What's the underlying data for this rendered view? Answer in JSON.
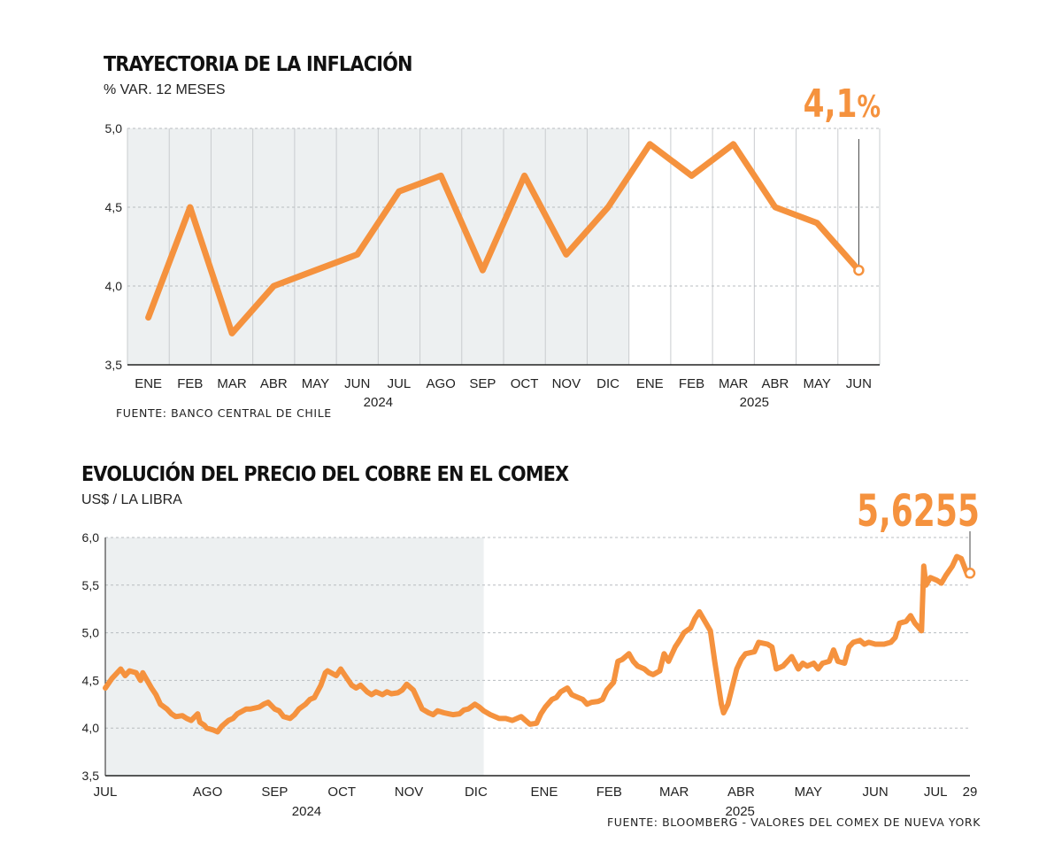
{
  "chart_data": [
    {
      "type": "line",
      "title": "TRAYECTORIA DE LA INFLACIÓN",
      "subtitle": "% VAR. 12 MESES",
      "source": "FUENTE: BANCO CENTRAL DE CHILE",
      "highlight_value": "4,1",
      "highlight_unit": "%",
      "ylim": [
        3.5,
        5.0
      ],
      "yticks": [
        "3,5",
        "4,0",
        "4,5",
        "5,0"
      ],
      "ytick_values": [
        3.5,
        4.0,
        4.5,
        5.0
      ],
      "grid": true,
      "categories": [
        "ENE",
        "FEB",
        "MAR",
        "ABR",
        "MAY",
        "JUN",
        "JUL",
        "AGO",
        "SEP",
        "OCT",
        "NOV",
        "DIC",
        "ENE",
        "FEB",
        "MAR",
        "ABR",
        "MAY",
        "JUN"
      ],
      "years": [
        {
          "label": "2024",
          "start": 0,
          "end": 11
        },
        {
          "label": "2025",
          "start": 12,
          "end": 17
        }
      ],
      "shaded_period": [
        0,
        11
      ],
      "values": [
        3.8,
        4.5,
        3.7,
        4.0,
        4.1,
        4.2,
        4.6,
        4.7,
        4.1,
        4.7,
        4.2,
        4.5,
        4.9,
        4.7,
        4.9,
        4.5,
        4.4,
        4.1
      ],
      "color": "#f5923e"
    },
    {
      "type": "line",
      "title": "EVOLUCIÓN DEL PRECIO DEL COBRE EN EL COMEX",
      "subtitle": "US$ / LA LIBRA",
      "source": "FUENTE: BLOOMBERG - VALORES DEL COMEX DE NUEVA YORK",
      "highlight_value": "5,6255",
      "ylim": [
        3.5,
        6.0
      ],
      "yticks": [
        "3,5",
        "4,0",
        "4,5",
        "5,0",
        "5,5",
        "6,0"
      ],
      "ytick_values": [
        3.5,
        4.0,
        4.5,
        5.0,
        5.5,
        6.0
      ],
      "grid": true,
      "x_start": "2024-07-01",
      "x_end": "2025-07-29",
      "x_ticks": [
        {
          "label": "JUL",
          "date": "2024-07-01"
        },
        {
          "label": "AGO",
          "date": "2024-08-01"
        },
        {
          "label": "SEP",
          "date": "2024-09-01"
        },
        {
          "label": "OCT",
          "date": "2024-10-01"
        },
        {
          "label": "NOV",
          "date": "2024-11-01"
        },
        {
          "label": "DIC",
          "date": "2024-12-01"
        },
        {
          "label": "ENE",
          "date": "2025-01-01"
        },
        {
          "label": "FEB",
          "date": "2025-02-01"
        },
        {
          "label": "MAR",
          "date": "2025-03-01"
        },
        {
          "label": "ABR",
          "date": "2025-04-01"
        },
        {
          "label": "MAY",
          "date": "2025-05-01"
        },
        {
          "label": "JUN",
          "date": "2025-06-01"
        },
        {
          "label": "JUL",
          "date": "2025-07-01"
        },
        {
          "label": "29",
          "date": "2025-07-29"
        }
      ],
      "years": [
        {
          "label": "2024",
          "start": "2024-07-01",
          "end": "2024-12-31"
        },
        {
          "label": "2025",
          "start": "2025-01-01",
          "end": "2025-07-29"
        }
      ],
      "shaded_period": [
        "2024-07-01",
        "2024-12-20"
      ],
      "points": [
        [
          "2024-07-01",
          4.42
        ],
        [
          "2024-07-04",
          4.52
        ],
        [
          "2024-07-08",
          4.62
        ],
        [
          "2024-07-10",
          4.55
        ],
        [
          "2024-07-12",
          4.6
        ],
        [
          "2024-07-15",
          4.58
        ],
        [
          "2024-07-17",
          4.5
        ],
        [
          "2024-07-18",
          4.58
        ],
        [
          "2024-07-22",
          4.42
        ],
        [
          "2024-07-24",
          4.35
        ],
        [
          "2024-07-26",
          4.25
        ],
        [
          "2024-07-29",
          4.2
        ],
        [
          "2024-07-31",
          4.15
        ],
        [
          "2024-08-02",
          4.12
        ],
        [
          "2024-08-05",
          4.13
        ],
        [
          "2024-08-07",
          4.1
        ],
        [
          "2024-08-09",
          4.08
        ],
        [
          "2024-08-12",
          4.15
        ],
        [
          "2024-08-13",
          4.06
        ],
        [
          "2024-08-15",
          4.03
        ],
        [
          "2024-08-16",
          4.0
        ],
        [
          "2024-08-19",
          3.98
        ],
        [
          "2024-08-21",
          3.96
        ],
        [
          "2024-08-23",
          4.02
        ],
        [
          "2024-08-26",
          4.08
        ],
        [
          "2024-08-28",
          4.1
        ],
        [
          "2024-08-30",
          4.15
        ],
        [
          "2024-09-03",
          4.2
        ],
        [
          "2024-09-05",
          4.2
        ],
        [
          "2024-09-09",
          4.22
        ],
        [
          "2024-09-11",
          4.25
        ],
        [
          "2024-09-13",
          4.27
        ],
        [
          "2024-09-16",
          4.2
        ],
        [
          "2024-09-18",
          4.18
        ],
        [
          "2024-09-20",
          4.12
        ],
        [
          "2024-09-23",
          4.1
        ],
        [
          "2024-09-25",
          4.14
        ],
        [
          "2024-09-27",
          4.2
        ],
        [
          "2024-09-30",
          4.25
        ],
        [
          "2024-10-02",
          4.3
        ],
        [
          "2024-10-04",
          4.32
        ],
        [
          "2024-10-07",
          4.45
        ],
        [
          "2024-10-09",
          4.58
        ],
        [
          "2024-10-10",
          4.6
        ],
        [
          "2024-10-14",
          4.55
        ],
        [
          "2024-10-16",
          4.62
        ],
        [
          "2024-10-18",
          4.55
        ],
        [
          "2024-10-21",
          4.45
        ],
        [
          "2024-10-23",
          4.42
        ],
        [
          "2024-10-25",
          4.45
        ],
        [
          "2024-10-28",
          4.38
        ],
        [
          "2024-10-30",
          4.35
        ],
        [
          "2024-11-01",
          4.38
        ],
        [
          "2024-11-04",
          4.35
        ],
        [
          "2024-11-06",
          4.38
        ],
        [
          "2024-11-08",
          4.36
        ],
        [
          "2024-11-11",
          4.37
        ],
        [
          "2024-11-13",
          4.4
        ],
        [
          "2024-11-15",
          4.46
        ],
        [
          "2024-11-18",
          4.4
        ],
        [
          "2024-11-20",
          4.3
        ],
        [
          "2024-11-22",
          4.2
        ],
        [
          "2024-11-25",
          4.16
        ],
        [
          "2024-11-27",
          4.14
        ],
        [
          "2024-11-29",
          4.18
        ],
        [
          "2024-12-02",
          4.16
        ],
        [
          "2024-12-04",
          4.15
        ],
        [
          "2024-12-06",
          4.14
        ],
        [
          "2024-12-09",
          4.15
        ],
        [
          "2024-12-11",
          4.19
        ],
        [
          "2024-12-13",
          4.2
        ],
        [
          "2024-12-16",
          4.25
        ],
        [
          "2024-12-18",
          4.22
        ],
        [
          "2024-12-20",
          4.18
        ],
        [
          "2024-12-23",
          4.14
        ],
        [
          "2024-12-27",
          4.1
        ],
        [
          "2024-12-30",
          4.1
        ],
        [
          "2025-01-02",
          4.08
        ],
        [
          "2025-01-06",
          4.12
        ],
        [
          "2025-01-08",
          4.08
        ],
        [
          "2025-01-10",
          4.04
        ],
        [
          "2025-01-13",
          4.05
        ],
        [
          "2025-01-15",
          4.15
        ],
        [
          "2025-01-17",
          4.22
        ],
        [
          "2025-01-20",
          4.3
        ],
        [
          "2025-01-22",
          4.32
        ],
        [
          "2025-01-24",
          4.38
        ],
        [
          "2025-01-27",
          4.42
        ],
        [
          "2025-01-29",
          4.35
        ],
        [
          "2025-01-31",
          4.33
        ],
        [
          "2025-02-03",
          4.3
        ],
        [
          "2025-02-05",
          4.25
        ],
        [
          "2025-02-07",
          4.27
        ],
        [
          "2025-02-10",
          4.28
        ],
        [
          "2025-02-12",
          4.3
        ],
        [
          "2025-02-14",
          4.4
        ],
        [
          "2025-02-17",
          4.48
        ],
        [
          "2025-02-19",
          4.7
        ],
        [
          "2025-02-21",
          4.72
        ],
        [
          "2025-02-24",
          4.78
        ],
        [
          "2025-02-26",
          4.7
        ],
        [
          "2025-02-28",
          4.65
        ],
        [
          "2025-03-03",
          4.62
        ],
        [
          "2025-03-05",
          4.58
        ],
        [
          "2025-03-07",
          4.56
        ],
        [
          "2025-03-10",
          4.6
        ],
        [
          "2025-03-12",
          4.78
        ],
        [
          "2025-03-14",
          4.7
        ],
        [
          "2025-03-17",
          4.85
        ],
        [
          "2025-03-19",
          4.92
        ],
        [
          "2025-03-21",
          5.0
        ],
        [
          "2025-03-24",
          5.05
        ],
        [
          "2025-03-26",
          5.15
        ],
        [
          "2025-03-28",
          5.22
        ],
        [
          "2025-03-31",
          5.1
        ],
        [
          "2025-04-02",
          5.02
        ],
        [
          "2025-04-04",
          4.7
        ],
        [
          "2025-04-07",
          4.25
        ],
        [
          "2025-04-08",
          4.16
        ],
        [
          "2025-04-10",
          4.25
        ],
        [
          "2025-04-14",
          4.62
        ],
        [
          "2025-04-16",
          4.72
        ],
        [
          "2025-04-18",
          4.78
        ],
        [
          "2025-04-22",
          4.8
        ],
        [
          "2025-04-24",
          4.9
        ],
        [
          "2025-04-28",
          4.88
        ],
        [
          "2025-04-30",
          4.85
        ],
        [
          "2025-05-02",
          4.62
        ],
        [
          "2025-05-05",
          4.65
        ],
        [
          "2025-05-07",
          4.7
        ],
        [
          "2025-05-09",
          4.75
        ],
        [
          "2025-05-12",
          4.62
        ],
        [
          "2025-05-14",
          4.68
        ],
        [
          "2025-05-16",
          4.65
        ],
        [
          "2025-05-19",
          4.68
        ],
        [
          "2025-05-21",
          4.62
        ],
        [
          "2025-05-23",
          4.68
        ],
        [
          "2025-05-26",
          4.7
        ],
        [
          "2025-05-28",
          4.82
        ],
        [
          "2025-05-30",
          4.7
        ],
        [
          "2025-06-02",
          4.68
        ],
        [
          "2025-06-04",
          4.85
        ],
        [
          "2025-06-06",
          4.9
        ],
        [
          "2025-06-09",
          4.92
        ],
        [
          "2025-06-11",
          4.88
        ],
        [
          "2025-06-13",
          4.9
        ],
        [
          "2025-06-16",
          4.88
        ],
        [
          "2025-06-18",
          4.88
        ],
        [
          "2025-06-20",
          4.88
        ],
        [
          "2025-06-23",
          4.9
        ],
        [
          "2025-06-25",
          4.95
        ],
        [
          "2025-06-27",
          5.1
        ],
        [
          "2025-06-30",
          5.12
        ],
        [
          "2025-07-02",
          5.18
        ],
        [
          "2025-07-04",
          5.1
        ],
        [
          "2025-07-07",
          5.02
        ],
        [
          "2025-07-08",
          5.7
        ],
        [
          "2025-07-09",
          5.5
        ],
        [
          "2025-07-11",
          5.58
        ],
        [
          "2025-07-14",
          5.55
        ],
        [
          "2025-07-16",
          5.52
        ],
        [
          "2025-07-18",
          5.6
        ],
        [
          "2025-07-21",
          5.7
        ],
        [
          "2025-07-23",
          5.8
        ],
        [
          "2025-07-25",
          5.78
        ],
        [
          "2025-07-28",
          5.6
        ],
        [
          "2025-07-29",
          5.6255
        ]
      ],
      "color": "#f5923e"
    }
  ]
}
